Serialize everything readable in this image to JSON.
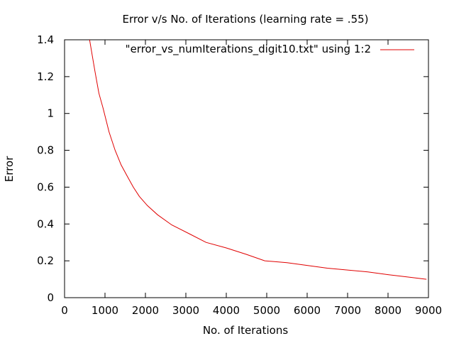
{
  "chart_data": {
    "type": "line",
    "title": "Error v/s No. of Iterations (learning rate = .55)",
    "xlabel": "No. of Iterations",
    "ylabel": "Error",
    "xlim": [
      0,
      9000
    ],
    "ylim": [
      0,
      1.4
    ],
    "x_ticks": [
      0,
      1000,
      2000,
      3000,
      4000,
      5000,
      6000,
      7000,
      8000,
      9000
    ],
    "x_tick_labels": [
      "0",
      "1000",
      "2000",
      "3000",
      "4000",
      "5000",
      "6000",
      "7000",
      "8000",
      "9000"
    ],
    "y_ticks": [
      0,
      0.2,
      0.4,
      0.6,
      0.8,
      1.0,
      1.2,
      1.4
    ],
    "y_tick_labels": [
      "0",
      "0.2",
      "0.4",
      "0.6",
      "0.8",
      "1",
      "1.2",
      "1.4"
    ],
    "grid": false,
    "legend_position": "top-right",
    "series": [
      {
        "name": "\"error_vs_numIterations_digit10.txt\" using 1:2",
        "color": "#e00000",
        "x": [
          620,
          680,
          750,
          850,
          950,
          1100,
          1250,
          1400,
          1550,
          1700,
          1850,
          2050,
          2300,
          2650,
          3100,
          3500,
          4000,
          4500,
          4950,
          5500,
          6000,
          6500,
          7000,
          7500,
          8000,
          8500,
          8950
        ],
        "y": [
          1.4,
          1.32,
          1.23,
          1.11,
          1.03,
          0.9,
          0.8,
          0.72,
          0.66,
          0.6,
          0.55,
          0.5,
          0.45,
          0.395,
          0.345,
          0.3,
          0.27,
          0.235,
          0.2,
          0.19,
          0.175,
          0.16,
          0.15,
          0.14,
          0.125,
          0.112,
          0.1
        ]
      }
    ]
  }
}
